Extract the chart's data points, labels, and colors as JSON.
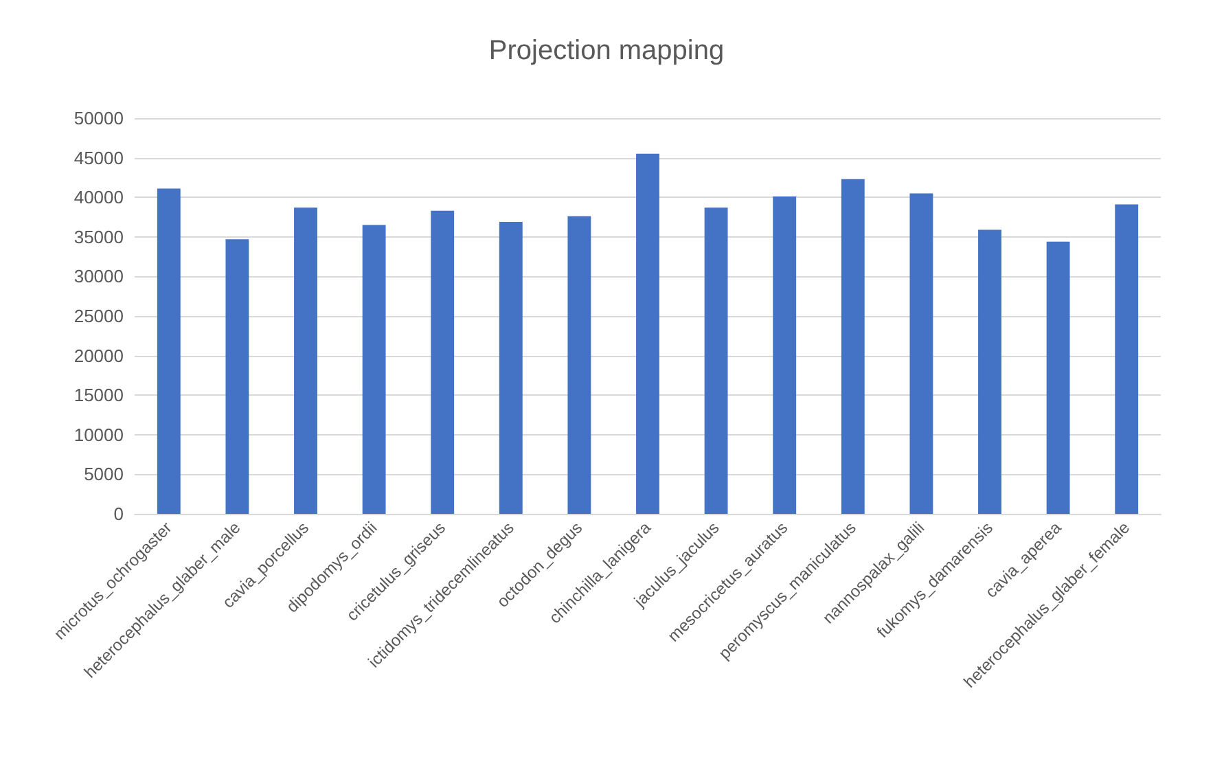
{
  "chart_data": {
    "type": "bar",
    "title": "Projection mapping",
    "categories": [
      "microtus_ochrogaster",
      "heterocephalus_glaber_male",
      "cavia_porcellus",
      "dipodomys_ordii",
      "cricetulus_griseus",
      "ictidomys_tridecemlineatus",
      "octodon_degus",
      "chinchilla_lanigera",
      "jaculus_jaculus",
      "mesocricetus_auratus",
      "peromyscus_maniculatus",
      "nannospalax_galili",
      "fukomys_damarensis",
      "cavia_aperea",
      "heterocephalus_glaber_female"
    ],
    "values": [
      41100,
      34700,
      38700,
      36500,
      38300,
      36900,
      37600,
      45500,
      38700,
      40100,
      42300,
      40500,
      35900,
      34400,
      39100
    ],
    "color": "#4472c4",
    "ylim": [
      0,
      50000
    ],
    "yticks": [
      0,
      5000,
      10000,
      15000,
      20000,
      25000,
      30000,
      35000,
      40000,
      45000,
      50000
    ],
    "grid": "y"
  }
}
